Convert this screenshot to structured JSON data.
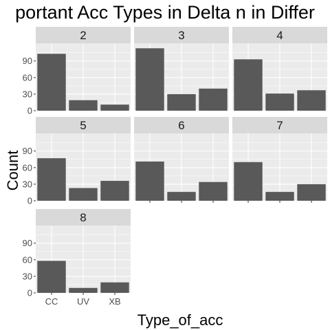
{
  "chart_data": {
    "type": "bar",
    "title": "portant Acc Types in Delta n in Differ",
    "xlabel": "Type_of_acc",
    "ylabel": "Count",
    "categories": [
      "CC",
      "UV",
      "XB"
    ],
    "ylim": [
      0,
      122
    ],
    "yticks": [
      0,
      30,
      60,
      90
    ],
    "grid": true,
    "facets": [
      {
        "label": "2",
        "values": [
          103,
          19,
          11
        ]
      },
      {
        "label": "3",
        "values": [
          113,
          30,
          40
        ]
      },
      {
        "label": "4",
        "values": [
          93,
          31,
          37
        ]
      },
      {
        "label": "5",
        "values": [
          77,
          23,
          36
        ]
      },
      {
        "label": "6",
        "values": [
          71,
          16,
          34
        ]
      },
      {
        "label": "7",
        "values": [
          70,
          16,
          30
        ]
      },
      {
        "label": "8",
        "values": [
          58,
          9,
          19
        ]
      }
    ]
  },
  "colors": {
    "panel_background": "#ebebeb",
    "strip_background": "#d9d9d9",
    "bar_fill": "#595959",
    "grid_major": "#ffffff",
    "tick_label": "#4d4d4d",
    "text": "#000000"
  }
}
